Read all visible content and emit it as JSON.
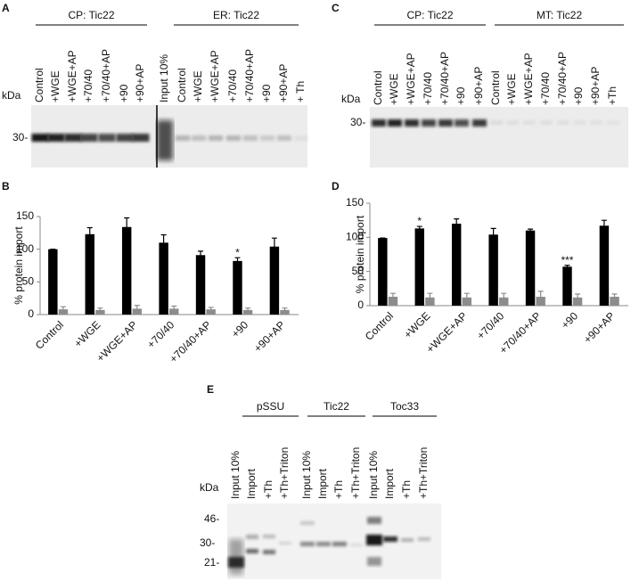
{
  "gels": [
    {
      "label": "A",
      "groups": [
        "CP: Tic22",
        "ER: Tic22"
      ],
      "lanes": [
        "Control",
        "+WGE",
        "+WGE+AP",
        "+70/40",
        "+70/40+AP",
        "+90",
        "+90+AP",
        "Input 10%",
        "Control",
        "+WGE",
        "+WGE+AP",
        "+70/40",
        "+70/40+AP",
        "+90",
        "+90+AP",
        "+ Th"
      ],
      "unit": "kDa",
      "markers": [
        "30-"
      ]
    },
    {
      "label": "C",
      "groups": [
        "CP: Tic22",
        "MT: Tic22"
      ],
      "lanes": [
        "Control",
        "+WGE",
        "+WGE+AP",
        "+70/40",
        "+70/40+AP",
        "+90",
        "+90+AP",
        "Control",
        "+WGE",
        "+WGE+AP",
        "+70/40",
        "+70/40+AP",
        "+90",
        "+90+AP",
        "+Th"
      ],
      "unit": "kDa",
      "markers": [
        "30-"
      ]
    },
    {
      "label": "E",
      "groups": [
        "pSSU",
        "Tic22",
        "Toc33"
      ],
      "lanes": [
        "Input 10%",
        "Import",
        "+Th",
        "+Th+Triton",
        "Input 10%",
        "Import",
        "+Th",
        "+Th+Triton",
        "Input 10%",
        "Import",
        "+Th",
        "+Th+Triton"
      ],
      "unit": "kDa",
      "markers": [
        "46-",
        "30-",
        "21-"
      ]
    }
  ],
  "chart_data": [
    {
      "type": "bar",
      "label": "B",
      "ylabel": "% protein import",
      "categories": [
        "Control",
        "+WGE",
        "+WGE+AP",
        "+70/40",
        "+70/40+AP",
        "+90",
        "+90+AP"
      ],
      "series": [
        {
          "color": "#000000",
          "values": [
            100,
            123,
            134,
            110,
            91,
            82,
            104
          ],
          "errors": [
            0,
            10,
            14,
            12,
            6,
            5,
            13
          ]
        },
        {
          "color": "#8c8c8c",
          "values": [
            8,
            7,
            9,
            9,
            8,
            7,
            7
          ],
          "errors": [
            4,
            3,
            5,
            4,
            3,
            3,
            3
          ]
        }
      ],
      "significance": [
        null,
        null,
        null,
        null,
        null,
        "*",
        null
      ],
      "ylim": [
        0,
        150
      ],
      "yticks": [
        0,
        50,
        100,
        150
      ]
    },
    {
      "type": "bar",
      "label": "D",
      "ylabel": "% protein import",
      "categories": [
        "Control",
        "+WGE",
        "+WGE+AP",
        "+70/40",
        "+70/40+AP",
        "+90",
        "+90+AP"
      ],
      "series": [
        {
          "color": "#000000",
          "values": [
            99,
            113,
            120,
            104,
            110,
            57,
            117
          ],
          "errors": [
            0,
            3,
            7,
            9,
            2,
            2,
            8
          ]
        },
        {
          "color": "#8c8c8c",
          "values": [
            13,
            12,
            12,
            12,
            13,
            12,
            13
          ],
          "errors": [
            5,
            6,
            6,
            6,
            8,
            5,
            4
          ]
        }
      ],
      "significance": [
        null,
        "*",
        null,
        null,
        null,
        "***",
        null
      ],
      "ylim": [
        0,
        150
      ],
      "yticks": [
        0,
        50,
        100,
        150
      ]
    }
  ]
}
